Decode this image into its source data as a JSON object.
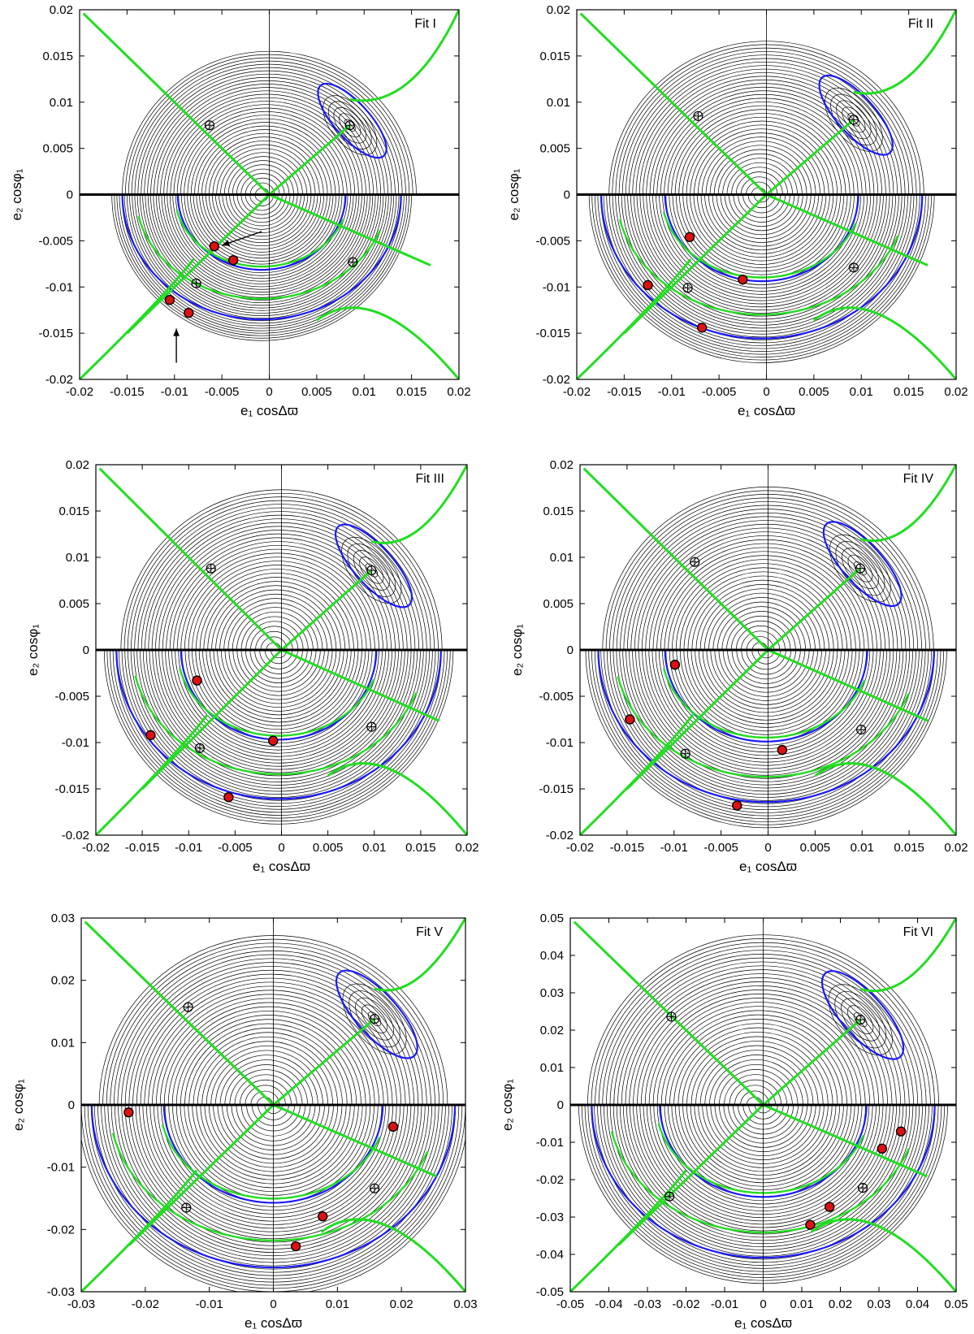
{
  "colors": {
    "contour": "#000000",
    "separatrix": "#1a1aff",
    "green_curve": "#22dd22",
    "red_marker": "#dd1111",
    "axis": "#000000",
    "background": "#ffffff"
  },
  "chart_data": [
    {
      "type": "contour",
      "title": "Fit I",
      "xlabel": "e₁ cosΔϖ",
      "ylabel": "e₂ cosφ₁",
      "xlim": [
        -0.02,
        0.02
      ],
      "ylim": [
        -0.02,
        0.02
      ],
      "xticks": [
        "-0.02",
        "-0.015",
        "-0.01",
        "-0.005",
        "0",
        "0.005",
        "0.01",
        "0.015",
        "0.02"
      ],
      "yticks": [
        "0.02",
        "0.015",
        "0.01",
        "0.005",
        "0",
        "-0.005",
        "-0.01",
        "-0.015",
        "-0.02"
      ],
      "show_xlabel": true,
      "upper_radius": 0.0155,
      "lower_radius": 0.0158,
      "lower_center_x": -0.0008,
      "elliptic_upper": [
        0.0085,
        0.0075
      ],
      "hyperbolic_points": [
        [
          -0.0063,
          0.0075
        ],
        [
          -0.0077,
          -0.0096
        ],
        [
          0.0088,
          -0.0073
        ]
      ],
      "red_points": [
        [
          -0.0058,
          -0.0056
        ],
        [
          -0.0038,
          -0.0071
        ],
        [
          -0.0105,
          -0.0114
        ],
        [
          -0.0085,
          -0.0128
        ]
      ],
      "arrows": [
        {
          "from": [
            -0.0008,
            -0.004
          ],
          "to": [
            -0.005,
            -0.0055
          ]
        },
        {
          "from": [
            -0.0098,
            -0.0182
          ],
          "to": [
            -0.0098,
            -0.0145
          ]
        }
      ]
    },
    {
      "type": "contour",
      "title": "Fit II",
      "xlabel": "e₁ cosΔϖ",
      "ylabel": "e₂ cosφ₁",
      "xlim": [
        -0.02,
        0.02
      ],
      "ylim": [
        -0.02,
        0.02
      ],
      "xticks": [
        "-0.02",
        "-0.015",
        "-0.01",
        "-0.005",
        "0",
        "0.005",
        "0.01",
        "0.015",
        "0.02"
      ],
      "yticks": [
        "0.02",
        "0.015",
        "0.01",
        "0.005",
        "0",
        "-0.005",
        "-0.01",
        "-0.015",
        "-0.02"
      ],
      "show_xlabel": true,
      "upper_radius": 0.0166,
      "lower_radius": 0.0182,
      "lower_center_x": -0.0005,
      "elliptic_upper": [
        0.0092,
        0.0081
      ],
      "hyperbolic_points": [
        [
          -0.0072,
          0.0085
        ],
        [
          -0.0083,
          -0.0101
        ],
        [
          0.0092,
          -0.0079
        ]
      ],
      "red_points": [
        [
          -0.0081,
          -0.0046
        ],
        [
          -0.0025,
          -0.0092
        ],
        [
          -0.0125,
          -0.0098
        ],
        [
          -0.0068,
          -0.0144
        ]
      ],
      "arrows": []
    },
    {
      "type": "contour",
      "title": "Fit III",
      "xlabel": "e₁ cosΔϖ",
      "ylabel": "e₂ cosφ₁",
      "xlim": [
        -0.02,
        0.02
      ],
      "ylim": [
        -0.02,
        0.02
      ],
      "xticks": [
        "-0.02",
        "-0.015",
        "-0.01",
        "-0.005",
        "0",
        "0.005",
        "0.01",
        "0.015",
        "0.02"
      ],
      "yticks": [
        "0.02",
        "0.015",
        "0.01",
        "0.005",
        "0",
        "-0.005",
        "-0.01",
        "-0.015",
        "-0.02"
      ],
      "show_xlabel": true,
      "upper_radius": 0.0173,
      "lower_radius": 0.0188,
      "lower_center_x": -0.0003,
      "elliptic_upper": [
        0.0097,
        0.0086
      ],
      "hyperbolic_points": [
        [
          -0.0076,
          0.0088
        ],
        [
          -0.0088,
          -0.0106
        ],
        [
          0.0097,
          -0.0083
        ]
      ],
      "red_points": [
        [
          -0.0091,
          -0.0033
        ],
        [
          -0.0009,
          -0.0098
        ],
        [
          -0.0141,
          -0.0092
        ],
        [
          -0.0057,
          -0.0159
        ]
      ],
      "arrows": []
    },
    {
      "type": "contour",
      "title": "Fit IV",
      "xlabel": "e₁ cosΔϖ",
      "ylabel": "e₂ cosφ₁",
      "xlim": [
        -0.02,
        0.02
      ],
      "ylim": [
        -0.02,
        0.02
      ],
      "xticks": [
        "-0.02",
        "-0.015",
        "-0.01",
        "-0.005",
        "0",
        "0.005",
        "0.01",
        "0.015",
        "0.02"
      ],
      "yticks": [
        "0.02",
        "0.015",
        "0.01",
        "0.005",
        "0",
        "-0.005",
        "-0.01",
        "-0.015",
        "-0.02"
      ],
      "show_xlabel": true,
      "upper_radius": 0.0176,
      "lower_radius": 0.0192,
      "lower_center_x": -0.0002,
      "elliptic_upper": [
        0.0098,
        0.0088
      ],
      "hyperbolic_points": [
        [
          -0.0078,
          0.0095
        ],
        [
          -0.0088,
          -0.0112
        ],
        [
          0.0099,
          -0.0086
        ]
      ],
      "red_points": [
        [
          -0.0099,
          -0.0016
        ],
        [
          0.0015,
          -0.0108
        ],
        [
          -0.0147,
          -0.0075
        ],
        [
          -0.0033,
          -0.0168
        ]
      ],
      "arrows": []
    },
    {
      "type": "contour",
      "title": "Fit V",
      "xlabel": "e₁ cosΔϖ",
      "ylabel": "e₂ cosφ₁",
      "xlim": [
        -0.03,
        0.03
      ],
      "ylim": [
        -0.03,
        0.03
      ],
      "xticks": [
        "-0.03",
        "-0.02",
        "-0.01",
        "0",
        "0.01",
        "0.02",
        "0.03"
      ],
      "yticks": [
        "0.03",
        "0.02",
        "0.01",
        "0",
        "-0.01",
        "-0.02",
        "-0.03"
      ],
      "show_xlabel": true,
      "upper_radius": 0.0272,
      "lower_radius": 0.0305,
      "lower_center_x": 0.0,
      "elliptic_upper": [
        0.0158,
        0.0138
      ],
      "hyperbolic_points": [
        [
          -0.0133,
          0.0157
        ],
        [
          -0.0136,
          -0.0165
        ],
        [
          0.0158,
          -0.0134
        ]
      ],
      "red_points": [
        [
          -0.0226,
          -0.0012
        ],
        [
          0.0187,
          -0.0035
        ],
        [
          0.0077,
          -0.0179
        ],
        [
          0.0035,
          -0.0227
        ]
      ],
      "arrows": []
    },
    {
      "type": "contour",
      "title": "Fit VI",
      "xlabel": "e₁ cosΔϖ",
      "ylabel": "e₂ cosφ₁",
      "xlim": [
        -0.05,
        0.05
      ],
      "ylim": [
        -0.05,
        0.05
      ],
      "xticks": [
        "-0.05",
        "-0.04",
        "-0.03",
        "-0.02",
        "-0.01",
        "0",
        "0.01",
        "0.02",
        "0.03",
        "0.04",
        "0.05"
      ],
      "yticks": [
        "0.05",
        "0.04",
        "0.03",
        "0.02",
        "0.01",
        "0",
        "-0.01",
        "-0.02",
        "-0.03",
        "-0.04",
        "-0.05"
      ],
      "show_xlabel": true,
      "upper_radius": 0.0455,
      "lower_radius": 0.0478,
      "lower_center_x": 0.0,
      "elliptic_upper": [
        0.0252,
        0.0228
      ],
      "hyperbolic_points": [
        [
          -0.0238,
          0.0236
        ],
        [
          -0.0243,
          -0.0245
        ],
        [
          0.0258,
          -0.0222
        ]
      ],
      "red_points": [
        [
          0.0357,
          -0.0071
        ],
        [
          0.0308,
          -0.0117
        ],
        [
          0.0172,
          -0.0273
        ],
        [
          0.0122,
          -0.0321
        ]
      ],
      "arrows": []
    }
  ]
}
